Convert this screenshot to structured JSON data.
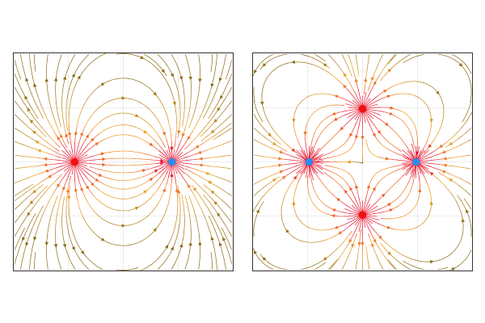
{
  "figure": {
    "panels": [
      {
        "id": "left",
        "description_type": "dipole streamlines",
        "grid_divisions": 4,
        "extent": [
          -2.25,
          2.25,
          -2.25,
          2.25
        ],
        "charges": [
          {
            "kind": "source",
            "x": -1.0,
            "y": 0.0,
            "q": 1,
            "color": "#ee1111"
          },
          {
            "kind": "sink",
            "x": 1.0,
            "y": 0.0,
            "q": -1,
            "color": "#2a8cf0"
          }
        ]
      },
      {
        "id": "right",
        "description_type": "quadrupole streamlines",
        "grid_divisions": 4,
        "extent": [
          -2.25,
          2.25,
          -2.25,
          2.25
        ],
        "charges": [
          {
            "kind": "source",
            "x": 0.0,
            "y": 1.1,
            "q": 1,
            "color": "#ee1111"
          },
          {
            "kind": "source",
            "x": 0.0,
            "y": -1.1,
            "q": 1,
            "color": "#ee1111"
          },
          {
            "kind": "sink",
            "x": -1.1,
            "y": 0.0,
            "q": -1,
            "color": "#2a8cf0"
          },
          {
            "kind": "sink",
            "x": 1.1,
            "y": 0.0,
            "q": -1,
            "color": "#2a8cf0"
          }
        ]
      }
    ],
    "colors": {
      "strong_field": "#e8102a",
      "mid_field": "#f0a020",
      "weak_field": "#8a6a10",
      "grid": "#dddddd",
      "frame": "#333333"
    }
  }
}
